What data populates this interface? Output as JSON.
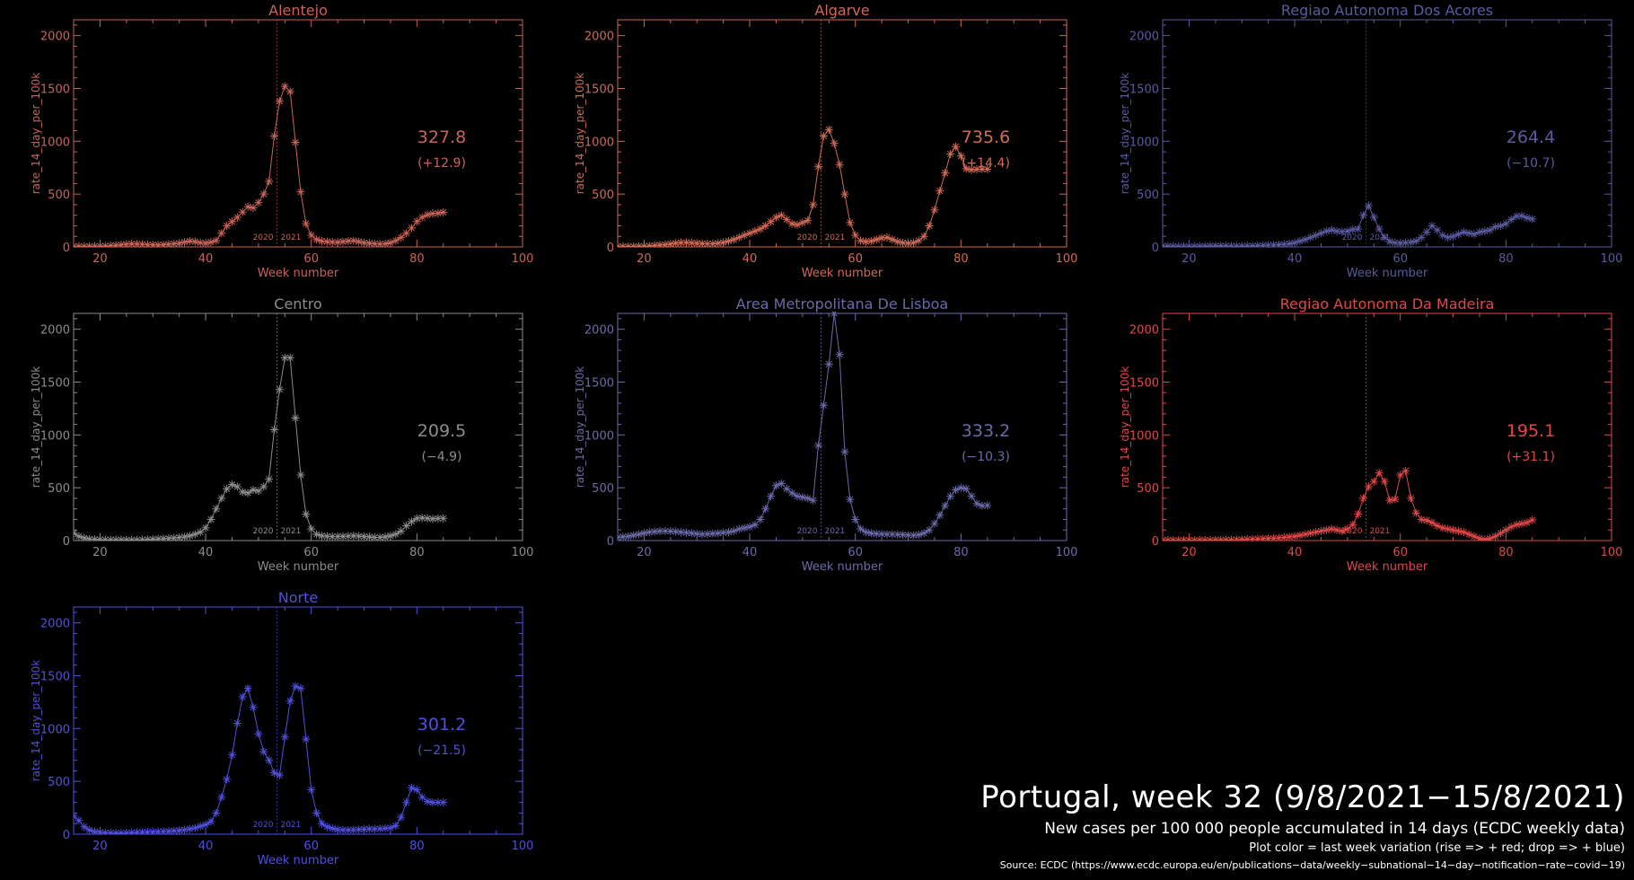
{
  "theme": {
    "background": "#000000",
    "rise_color": "#e04848",
    "drop_color": "#5858e0",
    "neutral_color": "#808080"
  },
  "shared": {
    "xlabel": "Week number",
    "ylabel": "rate_14_day_per_100k",
    "xlim": [
      15,
      100
    ],
    "ylim": [
      0,
      2150
    ],
    "xticks": [
      20,
      40,
      60,
      80,
      100
    ],
    "yticks": [
      0,
      500,
      1000,
      1500,
      2000
    ],
    "year_divider_week": 53.5,
    "year_labels": [
      "2020",
      "2021"
    ]
  },
  "chart_data": [
    {
      "type": "line",
      "title": "Alentejo",
      "color": "#c8645a",
      "value_label": "327.8",
      "change_label": "(+12.9)",
      "x": [
        15,
        16,
        17,
        18,
        19,
        20,
        21,
        22,
        23,
        24,
        25,
        26,
        27,
        28,
        29,
        30,
        31,
        32,
        33,
        34,
        35,
        36,
        37,
        38,
        39,
        40,
        41,
        42,
        43,
        44,
        45,
        46,
        47,
        48,
        49,
        50,
        51,
        52,
        53,
        54,
        55,
        56,
        57,
        58,
        59,
        60,
        61,
        62,
        63,
        64,
        65,
        66,
        67,
        68,
        69,
        70,
        71,
        72,
        73,
        74,
        75,
        76,
        77,
        78,
        79,
        80,
        81,
        82,
        83,
        84,
        85
      ],
      "y": [
        8,
        6,
        5,
        6,
        7,
        8,
        10,
        12,
        15,
        20,
        25,
        30,
        28,
        25,
        22,
        20,
        18,
        20,
        25,
        30,
        35,
        45,
        55,
        50,
        40,
        35,
        45,
        60,
        130,
        200,
        240,
        280,
        330,
        380,
        370,
        420,
        500,
        620,
        1050,
        1380,
        1520,
        1470,
        990,
        520,
        220,
        110,
        70,
        55,
        50,
        45,
        45,
        50,
        55,
        60,
        50,
        40,
        35,
        30,
        28,
        30,
        40,
        60,
        90,
        130,
        180,
        240,
        280,
        305,
        315,
        320,
        328
      ]
    },
    {
      "type": "line",
      "title": "Algarve",
      "color": "#d06a56",
      "value_label": "735.6",
      "change_label": "(+14.4)",
      "x": [
        15,
        16,
        17,
        18,
        19,
        20,
        21,
        22,
        23,
        24,
        25,
        26,
        27,
        28,
        29,
        30,
        31,
        32,
        33,
        34,
        35,
        36,
        37,
        38,
        39,
        40,
        41,
        42,
        43,
        44,
        45,
        46,
        47,
        48,
        49,
        50,
        51,
        52,
        53,
        54,
        55,
        56,
        57,
        58,
        59,
        60,
        61,
        62,
        63,
        64,
        65,
        66,
        67,
        68,
        69,
        70,
        71,
        72,
        73,
        74,
        75,
        76,
        77,
        78,
        79,
        80,
        81,
        82,
        83,
        84,
        85
      ],
      "y": [
        5,
        5,
        4,
        5,
        6,
        8,
        10,
        14,
        18,
        22,
        28,
        35,
        40,
        42,
        38,
        35,
        32,
        30,
        30,
        35,
        42,
        55,
        70,
        90,
        110,
        130,
        150,
        170,
        200,
        240,
        280,
        300,
        260,
        220,
        210,
        230,
        250,
        400,
        760,
        1050,
        1110,
        980,
        780,
        500,
        230,
        110,
        60,
        50,
        55,
        70,
        85,
        90,
        70,
        50,
        40,
        35,
        40,
        60,
        100,
        200,
        350,
        530,
        700,
        880,
        950,
        860,
        740,
        730,
        735,
        736,
        736
      ]
    },
    {
      "type": "line",
      "title": "Regiao Autonoma Dos Acores",
      "color": "#5a5aa0",
      "value_label": "264.4",
      "change_label": "(−10.7)",
      "x": [
        15,
        16,
        17,
        18,
        19,
        20,
        21,
        22,
        23,
        24,
        25,
        26,
        27,
        28,
        29,
        30,
        31,
        32,
        33,
        34,
        35,
        36,
        37,
        38,
        39,
        40,
        41,
        42,
        43,
        44,
        45,
        46,
        47,
        48,
        49,
        50,
        51,
        52,
        53,
        54,
        55,
        56,
        57,
        58,
        59,
        60,
        61,
        62,
        63,
        64,
        65,
        66,
        67,
        68,
        69,
        70,
        71,
        72,
        73,
        74,
        75,
        76,
        77,
        78,
        79,
        80,
        81,
        82,
        83,
        84,
        85
      ],
      "y": [
        10,
        8,
        6,
        5,
        5,
        5,
        6,
        6,
        8,
        10,
        10,
        12,
        10,
        8,
        8,
        8,
        10,
        10,
        12,
        14,
        16,
        18,
        20,
        25,
        30,
        40,
        55,
        70,
        90,
        110,
        130,
        150,
        160,
        150,
        145,
        150,
        165,
        170,
        300,
        390,
        280,
        170,
        90,
        50,
        40,
        35,
        40,
        45,
        55,
        90,
        140,
        200,
        160,
        110,
        90,
        100,
        120,
        140,
        130,
        120,
        140,
        150,
        160,
        190,
        200,
        220,
        260,
        290,
        295,
        275,
        264
      ]
    },
    {
      "type": "line",
      "title": "Centro",
      "color": "#8c8c8c",
      "value_label": "209.5",
      "change_label": "(−4.9)",
      "x": [
        15,
        16,
        17,
        18,
        19,
        20,
        21,
        22,
        23,
        24,
        25,
        26,
        27,
        28,
        29,
        30,
        31,
        32,
        33,
        34,
        35,
        36,
        37,
        38,
        39,
        40,
        41,
        42,
        43,
        44,
        45,
        46,
        47,
        48,
        49,
        50,
        51,
        52,
        53,
        54,
        55,
        56,
        57,
        58,
        59,
        60,
        61,
        62,
        63,
        64,
        65,
        66,
        67,
        68,
        69,
        70,
        71,
        72,
        73,
        74,
        75,
        76,
        77,
        78,
        79,
        80,
        81,
        82,
        83,
        84,
        85
      ],
      "y": [
        70,
        40,
        25,
        15,
        12,
        10,
        8,
        8,
        7,
        7,
        6,
        6,
        7,
        8,
        10,
        12,
        15,
        18,
        20,
        25,
        30,
        35,
        45,
        60,
        80,
        120,
        200,
        300,
        400,
        490,
        530,
        510,
        460,
        450,
        480,
        470,
        510,
        580,
        1050,
        1430,
        1730,
        1730,
        1160,
        620,
        250,
        110,
        60,
        45,
        40,
        38,
        38,
        40,
        42,
        45,
        42,
        38,
        35,
        30,
        30,
        35,
        45,
        60,
        90,
        140,
        180,
        210,
        215,
        210,
        205,
        210,
        210
      ]
    },
    {
      "type": "line",
      "title": "Area Metropolitana De Lisboa",
      "color": "#6a6aa8",
      "value_label": "333.2",
      "change_label": "(−10.3)",
      "x": [
        15,
        16,
        17,
        18,
        19,
        20,
        21,
        22,
        23,
        24,
        25,
        26,
        27,
        28,
        29,
        30,
        31,
        32,
        33,
        34,
        35,
        36,
        37,
        38,
        39,
        40,
        41,
        42,
        43,
        44,
        45,
        46,
        47,
        48,
        49,
        50,
        51,
        52,
        53,
        54,
        55,
        56,
        57,
        58,
        59,
        60,
        61,
        62,
        63,
        64,
        65,
        66,
        67,
        68,
        69,
        70,
        71,
        72,
        73,
        74,
        75,
        76,
        77,
        78,
        79,
        80,
        81,
        82,
        83,
        84,
        85
      ],
      "y": [
        30,
        35,
        40,
        50,
        60,
        70,
        80,
        85,
        90,
        90,
        88,
        85,
        80,
        75,
        70,
        65,
        60,
        62,
        66,
        70,
        75,
        80,
        90,
        110,
        120,
        130,
        150,
        200,
        300,
        420,
        520,
        540,
        490,
        450,
        420,
        410,
        400,
        380,
        900,
        1280,
        1670,
        2150,
        1760,
        840,
        390,
        200,
        110,
        80,
        70,
        65,
        62,
        60,
        60,
        58,
        55,
        52,
        50,
        55,
        70,
        100,
        160,
        240,
        330,
        420,
        480,
        500,
        490,
        420,
        350,
        330,
        333
      ]
    },
    {
      "type": "line",
      "title": "Regiao Autonoma Da Madeira",
      "color": "#e04848",
      "value_label": "195.1",
      "change_label": "(+31.1)",
      "x": [
        15,
        16,
        17,
        18,
        19,
        20,
        21,
        22,
        23,
        24,
        25,
        26,
        27,
        28,
        29,
        30,
        31,
        32,
        33,
        34,
        35,
        36,
        37,
        38,
        39,
        40,
        41,
        42,
        43,
        44,
        45,
        46,
        47,
        48,
        49,
        50,
        51,
        52,
        53,
        54,
        55,
        56,
        57,
        58,
        59,
        60,
        61,
        62,
        63,
        64,
        65,
        66,
        67,
        68,
        69,
        70,
        71,
        72,
        73,
        74,
        75,
        76,
        77,
        78,
        79,
        80,
        81,
        82,
        83,
        84,
        85
      ],
      "y": [
        5,
        5,
        4,
        4,
        4,
        4,
        4,
        5,
        5,
        5,
        6,
        6,
        7,
        8,
        9,
        10,
        12,
        14,
        15,
        18,
        20,
        22,
        25,
        30,
        35,
        40,
        50,
        60,
        70,
        80,
        90,
        100,
        110,
        100,
        90,
        110,
        150,
        250,
        400,
        510,
        560,
        640,
        560,
        380,
        390,
        620,
        660,
        400,
        260,
        200,
        190,
        170,
        140,
        120,
        110,
        100,
        90,
        80,
        60,
        40,
        20,
        10,
        20,
        40,
        70,
        100,
        130,
        150,
        160,
        170,
        195
      ]
    },
    {
      "type": "line",
      "title": "Norte",
      "color": "#5050e0",
      "value_label": "301.2",
      "change_label": "(−21.5)",
      "x": [
        15,
        16,
        17,
        18,
        19,
        20,
        21,
        22,
        23,
        24,
        25,
        26,
        27,
        28,
        29,
        30,
        31,
        32,
        33,
        34,
        35,
        36,
        37,
        38,
        39,
        40,
        41,
        42,
        43,
        44,
        45,
        46,
        47,
        48,
        49,
        50,
        51,
        52,
        53,
        54,
        55,
        56,
        57,
        58,
        59,
        60,
        61,
        62,
        63,
        64,
        65,
        66,
        67,
        68,
        69,
        70,
        71,
        72,
        73,
        74,
        75,
        76,
        77,
        78,
        79,
        80,
        81,
        82,
        83,
        84,
        85
      ],
      "y": [
        170,
        130,
        70,
        40,
        25,
        18,
        14,
        12,
        11,
        11,
        12,
        14,
        16,
        18,
        20,
        22,
        24,
        26,
        28,
        32,
        36,
        42,
        50,
        60,
        75,
        90,
        120,
        200,
        350,
        520,
        750,
        1050,
        1300,
        1380,
        1200,
        950,
        780,
        700,
        580,
        560,
        920,
        1260,
        1400,
        1380,
        900,
        420,
        200,
        100,
        70,
        55,
        45,
        40,
        40,
        42,
        45,
        48,
        50,
        50,
        52,
        55,
        60,
        80,
        160,
        300,
        440,
        420,
        350,
        310,
        300,
        301,
        301
      ]
    }
  ],
  "footer": {
    "title": "Portugal, week 32 (9/8/2021−15/8/2021)",
    "subtitle": "New cases per 100 000 people accumulated in 14 days (ECDC weekly data)",
    "note": "Plot color = last week variation (rise => + red; drop => + blue)",
    "source": "Source: ECDC (https://www.ecdc.europa.eu/en/publications−data/weekly−subnational−14−day−notification−rate−covid−19)"
  }
}
